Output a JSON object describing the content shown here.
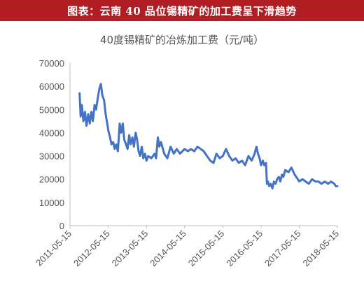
{
  "header": {
    "banner_text": "图表：云南 40 品位锡精矿的加工费呈下滑趋势"
  },
  "chart_data": {
    "type": "line",
    "title": "40度锡精矿的冶炼加工费（元/吨）",
    "xlabel": "",
    "ylabel": "",
    "ylim": [
      0,
      70000
    ],
    "yticks": [
      0,
      10000,
      20000,
      30000,
      40000,
      50000,
      60000,
      70000
    ],
    "ytick_labels": [
      "0",
      "10000",
      "20000",
      "30000",
      "40000",
      "50000",
      "60000",
      "70000"
    ],
    "xlim": [
      "2011-05-15",
      "2018-05-15"
    ],
    "xtick_labels": [
      "2011-05-15",
      "2012-05-15",
      "2013-05-15",
      "2014-05-15",
      "2015-05-15",
      "2016-05-15",
      "2017-05-15",
      "2018-05-15"
    ],
    "grid": false,
    "legend": "none",
    "line_color": "#4472c4",
    "series": [
      {
        "x": [
          "2011-08-15",
          "2011-08-25",
          "2011-09-05",
          "2011-09-20",
          "2011-10-05",
          "2011-10-20",
          "2011-11-05",
          "2011-11-20",
          "2011-12-05",
          "2011-12-20",
          "2012-01-05",
          "2012-01-20",
          "2012-02-05",
          "2012-02-20",
          "2012-03-05",
          "2012-03-20",
          "2012-04-05",
          "2012-04-20",
          "2012-05-05",
          "2012-05-15",
          "2012-06-01",
          "2012-06-15",
          "2012-07-01",
          "2012-07-15",
          "2012-08-01",
          "2012-08-15",
          "2012-09-01",
          "2012-09-15",
          "2012-10-01",
          "2012-10-15",
          "2012-11-01",
          "2012-11-15",
          "2012-12-01",
          "2012-12-15",
          "2013-01-01",
          "2013-01-15",
          "2013-02-01",
          "2013-02-15",
          "2013-03-01",
          "2013-03-15",
          "2013-04-01",
          "2013-04-15",
          "2013-05-01",
          "2013-05-15",
          "2013-06-01",
          "2013-07-01",
          "2013-08-01",
          "2013-08-15",
          "2013-09-01",
          "2013-09-15",
          "2013-10-01",
          "2013-11-01",
          "2013-12-01",
          "2014-01-01",
          "2014-02-01",
          "2014-03-01",
          "2014-04-01",
          "2014-05-15",
          "2014-06-15",
          "2014-07-15",
          "2014-08-15",
          "2014-09-15",
          "2014-10-15",
          "2014-11-15",
          "2014-12-15",
          "2015-01-15",
          "2015-02-15",
          "2015-03-15",
          "2015-04-15",
          "2015-05-15",
          "2015-06-15",
          "2015-07-15",
          "2015-08-15",
          "2015-09-15",
          "2015-10-15",
          "2015-11-15",
          "2015-12-15",
          "2016-01-15",
          "2016-02-15",
          "2016-03-15",
          "2016-04-01",
          "2016-04-15",
          "2016-05-01",
          "2016-05-15",
          "2016-06-01",
          "2016-06-15",
          "2016-07-01",
          "2016-07-10",
          "2016-07-20",
          "2016-08-01",
          "2016-08-15",
          "2016-09-01",
          "2016-09-15",
          "2016-10-01",
          "2016-10-15",
          "2016-11-01",
          "2016-11-15",
          "2016-12-01",
          "2016-12-15",
          "2017-01-01",
          "2017-02-01",
          "2017-03-01",
          "2017-04-01",
          "2017-05-01",
          "2017-05-15",
          "2017-06-15",
          "2017-07-15",
          "2017-08-15",
          "2017-09-15",
          "2017-10-15",
          "2017-11-15",
          "2017-12-15",
          "2018-01-15",
          "2018-02-15",
          "2018-03-15",
          "2018-04-15",
          "2018-05-01",
          "2018-05-15"
        ],
        "values": [
          57000,
          47000,
          52000,
          45000,
          49000,
          43000,
          48000,
          44000,
          49000,
          45000,
          52000,
          50000,
          55000,
          59000,
          61000,
          56000,
          54000,
          48000,
          44000,
          41000,
          38000,
          35000,
          36000,
          33000,
          35000,
          32000,
          44000,
          40000,
          44000,
          37000,
          35000,
          33000,
          39000,
          35000,
          38000,
          34000,
          40000,
          37000,
          32000,
          30000,
          34000,
          29000,
          31000,
          28000,
          30000,
          29000,
          31000,
          29000,
          38000,
          34000,
          36000,
          31000,
          29000,
          34000,
          31000,
          33000,
          31000,
          33000,
          32000,
          33000,
          32000,
          34000,
          33000,
          32000,
          30000,
          28000,
          27000,
          31000,
          29000,
          30000,
          33000,
          30000,
          28000,
          29000,
          27000,
          28000,
          26000,
          30000,
          28000,
          31000,
          34000,
          31000,
          29000,
          26000,
          28000,
          26000,
          27000,
          18000,
          19000,
          17000,
          18000,
          16000,
          19000,
          18000,
          20000,
          21000,
          19000,
          22000,
          21000,
          24000,
          23000,
          25000,
          22000,
          20000,
          19000,
          20000,
          19000,
          18000,
          20000,
          19000,
          19000,
          18000,
          19000,
          18000,
          19000,
          18000,
          17000,
          17000
        ]
      }
    ]
  }
}
